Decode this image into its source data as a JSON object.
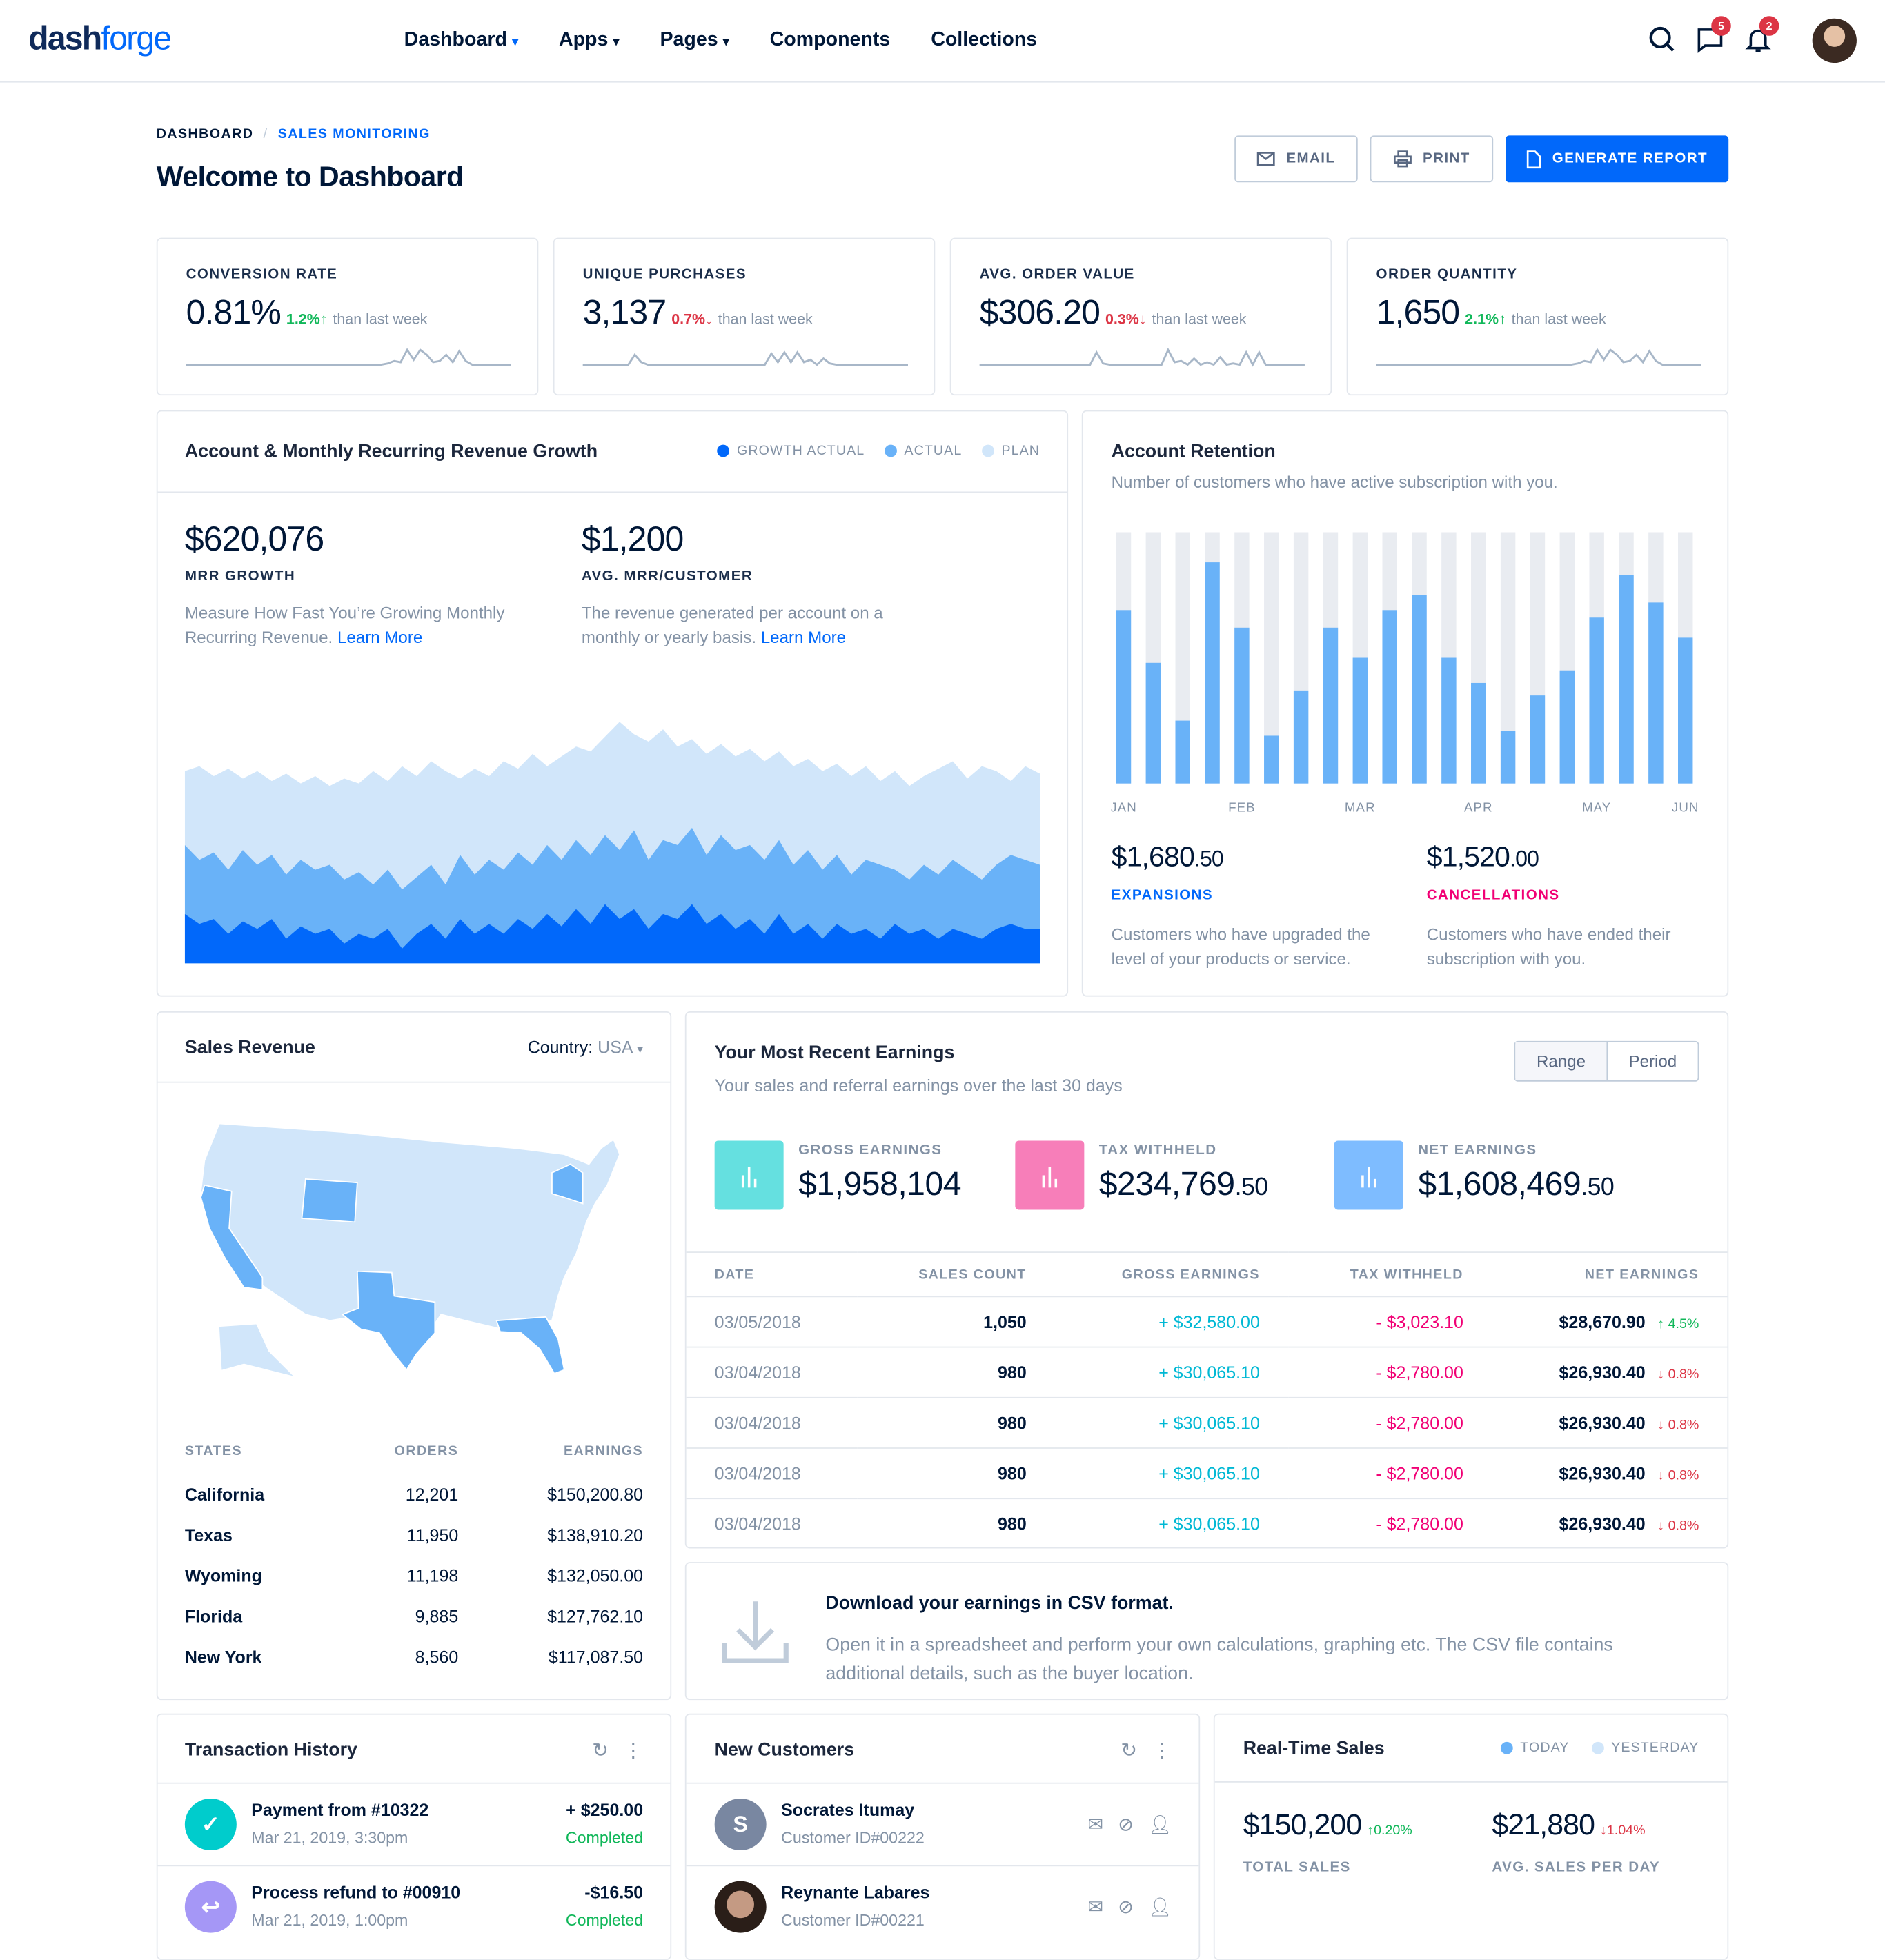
{
  "header": {
    "logo_a": "dash",
    "logo_b": "forge",
    "nav": [
      {
        "label": "Dashboard",
        "dropdown": true,
        "active": true
      },
      {
        "label": "Apps",
        "dropdown": true
      },
      {
        "label": "Pages",
        "dropdown": true
      },
      {
        "label": "Components"
      },
      {
        "label": "Collections"
      }
    ],
    "messages_badge": "5",
    "notifications_badge": "2",
    "chev": "⌄"
  },
  "breadcrumb": {
    "root": "DASHBOARD",
    "sep": "/",
    "current": "SALES MONITORING"
  },
  "page_title": "Welcome to Dashboard",
  "actions": {
    "email": "EMAIL",
    "print": "PRINT",
    "generate": "GENERATE REPORT"
  },
  "kpis": [
    {
      "label": "Conversion Rate",
      "value": "0.81%",
      "change": "1.2%",
      "dir": "up",
      "arrow": "↑",
      "suffix": "than last week",
      "spark": [
        0,
        0,
        0,
        0,
        0,
        0,
        0,
        0,
        0,
        0,
        0,
        0,
        0,
        0,
        0,
        0,
        0,
        0,
        0,
        0,
        0,
        0,
        0,
        0,
        0,
        0,
        0,
        0,
        0,
        0,
        0,
        1,
        3,
        2,
        12,
        4,
        12,
        8,
        2,
        3,
        8,
        2,
        11,
        3,
        0,
        0,
        0,
        0,
        0,
        0,
        0
      ]
    },
    {
      "label": "Unique Purchases",
      "value": "3,137",
      "change": "0.7%",
      "dir": "down",
      "arrow": "↓",
      "suffix": "than last week",
      "spark": [
        0,
        0,
        0,
        0,
        0,
        0,
        0,
        0,
        8,
        2,
        0,
        0,
        0,
        0,
        0,
        0,
        0,
        0,
        0,
        0,
        0,
        0,
        0,
        0,
        0,
        0,
        0,
        0,
        0,
        9,
        2,
        10,
        2,
        10,
        2,
        4,
        0,
        5,
        1,
        0,
        0,
        0,
        0,
        0,
        0,
        0,
        0,
        0,
        0,
        0,
        0
      ]
    },
    {
      "label": "Avg. Order Value",
      "value": "$306.20",
      "change": "0.3%",
      "dir": "down",
      "arrow": "↓",
      "suffix": "than last week",
      "spark": [
        0,
        0,
        0,
        0,
        0,
        0,
        0,
        0,
        0,
        0,
        0,
        0,
        0,
        0,
        0,
        0,
        0,
        0,
        10,
        1,
        0,
        0,
        0,
        0,
        0,
        0,
        0,
        0,
        0,
        12,
        2,
        3,
        0,
        5,
        0,
        2,
        0,
        6,
        0,
        1,
        0,
        10,
        0,
        10,
        0,
        0,
        0,
        0,
        0,
        0,
        0
      ]
    },
    {
      "label": "Order Quantity",
      "value": "1,650",
      "change": "2.1%",
      "dir": "up",
      "arrow": "↑",
      "suffix": "than last week",
      "spark": [
        0,
        0,
        0,
        0,
        0,
        0,
        0,
        0,
        0,
        0,
        0,
        0,
        0,
        0,
        0,
        0,
        0,
        0,
        0,
        0,
        0,
        0,
        0,
        0,
        0,
        0,
        0,
        0,
        0,
        0,
        0,
        1,
        3,
        2,
        12,
        4,
        12,
        8,
        2,
        3,
        8,
        2,
        11,
        3,
        0,
        0,
        0,
        0,
        0,
        0,
        0
      ]
    }
  ],
  "revenue": {
    "title": "Account & Monthly Recurring Revenue Growth",
    "legend": [
      {
        "label": "GROWTH ACTUAL",
        "color": "#0168fa"
      },
      {
        "label": "ACTUAL",
        "color": "#69b2f8"
      },
      {
        "label": "PLAN",
        "color": "#d1e6fa"
      }
    ],
    "stats": [
      {
        "value": "$620,076",
        "label": "MRR GROWTH",
        "desc": "Measure How Fast You’re Growing Monthly Recurring Revenue.",
        "link": "Learn More"
      },
      {
        "value": "$1,200",
        "label": "AVG. MRR/CUSTOMER",
        "desc": "The revenue generated per account on a monthly or yearly basis.",
        "link": "Learn More"
      }
    ]
  },
  "retention": {
    "title": "Account Retention",
    "subtitle": "Number of customers who have active subscription with you.",
    "months": [
      "JAN",
      "FEB",
      "MAR",
      "APR",
      "MAY",
      "JUN"
    ],
    "expansions": {
      "whole": "$1,680",
      "cents": ".50",
      "label": "EXPANSIONS",
      "desc": "Customers who have upgraded the level of your products or service."
    },
    "cancellations": {
      "whole": "$1,520",
      "cents": ".00",
      "label": "CANCELLATIONS",
      "desc": "Customers who have ended their subscription with you."
    }
  },
  "sales_revenue": {
    "title": "Sales Revenue",
    "country_label": "Country:",
    "country": "USA",
    "headers": [
      "STATES",
      "ORDERS",
      "EARNINGS"
    ],
    "rows": [
      [
        "California",
        "12,201",
        "$150,200.80"
      ],
      [
        "Texas",
        "11,950",
        "$138,910.20"
      ],
      [
        "Wyoming",
        "11,198",
        "$132,050.00"
      ],
      [
        "Florida",
        "9,885",
        "$127,762.10"
      ],
      [
        "New York",
        "8,560",
        "$117,087.50"
      ]
    ]
  },
  "earnings": {
    "title": "Your Most Recent Earnings",
    "subtitle": "Your sales and referral earnings over the last 30 days",
    "range": "Range",
    "period": "Period",
    "summary": [
      {
        "label": "GROSS EARNINGS",
        "whole": "$1,958,104",
        "cents": "",
        "color": "#65e0e0"
      },
      {
        "label": "TAX WITHHELD",
        "whole": "$234,769",
        "cents": ".50",
        "color": "#f77eb9"
      },
      {
        "label": "NET EARNINGS",
        "whole": "$1,608,469",
        "cents": ".50",
        "color": "#7ebcff"
      }
    ],
    "headers": [
      "DATE",
      "SALES COUNT",
      "GROSS EARNINGS",
      "TAX WITHHELD",
      "NET EARNINGS"
    ],
    "rows": [
      [
        "03/05/2018",
        "1,050",
        "+ $32,580.00",
        "- $3,023.10",
        "$28,670.90",
        "↑ 4.5%",
        "up"
      ],
      [
        "03/04/2018",
        "980",
        "+ $30,065.10",
        "- $2,780.00",
        "$26,930.40",
        "↓ 0.8%",
        "down"
      ],
      [
        "03/04/2018",
        "980",
        "+ $30,065.10",
        "- $2,780.00",
        "$26,930.40",
        "↓ 0.8%",
        "down"
      ],
      [
        "03/04/2018",
        "980",
        "+ $30,065.10",
        "- $2,780.00",
        "$26,930.40",
        "↓ 0.8%",
        "down"
      ],
      [
        "03/04/2018",
        "980",
        "+ $30,065.10",
        "- $2,780.00",
        "$26,930.40",
        "↓ 0.8%",
        "down"
      ]
    ]
  },
  "csv": {
    "title": "Download your earnings in CSV format.",
    "desc": "Open it in a spreadsheet and perform your own calculations, graphing etc. The CSV file contains additional details, such as the buyer location."
  },
  "transactions": {
    "title": "Transaction History",
    "items": [
      {
        "title": "Payment from #10322",
        "date": "Mar 21, 2019, 3:30pm",
        "amount": "+ $250.00",
        "status": "Completed",
        "icon": "✓",
        "color": "#00cccc"
      },
      {
        "title": "Process refund to #00910",
        "date": "Mar 21, 2019, 1:00pm",
        "amount": "-$16.50",
        "status": "Completed",
        "icon": "↩",
        "color": "#a597f6"
      }
    ]
  },
  "customers": {
    "title": "New Customers",
    "items": [
      {
        "name": "Socrates Itumay",
        "id": "Customer ID#00222",
        "initial": "S"
      },
      {
        "name": "Reynante Labares",
        "id": "Customer ID#00221",
        "initial": ""
      }
    ]
  },
  "realtime": {
    "title": "Real-Time Sales",
    "legend": [
      {
        "label": "TODAY",
        "color": "#69b2f8"
      },
      {
        "label": "YESTERDAY",
        "color": "#d1e6fa"
      }
    ],
    "stats": [
      {
        "value": "$150,200",
        "change": "↑0.20%",
        "dir": "up",
        "label": "TOTAL SALES"
      },
      {
        "value": "$21,880",
        "change": "↓1.04%",
        "dir": "down",
        "label": "AVG. SALES PER DAY"
      }
    ]
  },
  "chart_data": [
    {
      "type": "area",
      "title": "Account & Monthly Recurring Revenue Growth",
      "ylim": [
        0,
        100
      ],
      "series": [
        {
          "name": "PLAN",
          "color": "#d1e6fa",
          "values": [
            78,
            80,
            76,
            79,
            75,
            78,
            74,
            77,
            73,
            76,
            72,
            75,
            73,
            78,
            74,
            80,
            76,
            82,
            78,
            75,
            79,
            76,
            82,
            79,
            85,
            80,
            84,
            88,
            86,
            92,
            98,
            93,
            90,
            95,
            88,
            91,
            85,
            89,
            84,
            87,
            82,
            86,
            80,
            83,
            78,
            81,
            76,
            80,
            74,
            78,
            72,
            76,
            79,
            82,
            75,
            80,
            78,
            74,
            80,
            77
          ]
        },
        {
          "name": "ACTUAL",
          "color": "#69b2f8",
          "values": [
            48,
            42,
            45,
            38,
            46,
            40,
            44,
            36,
            42,
            38,
            40,
            34,
            37,
            32,
            38,
            30,
            35,
            40,
            32,
            44,
            36,
            42,
            38,
            45,
            40,
            48,
            42,
            50,
            44,
            52,
            46,
            54,
            42,
            50,
            48,
            55,
            44,
            52,
            46,
            48,
            42,
            50,
            40,
            46,
            38,
            44,
            36,
            42,
            40,
            38,
            34,
            40,
            36,
            42,
            38,
            34,
            40,
            44,
            42,
            40
          ]
        },
        {
          "name": "GROWTH ACTUAL",
          "color": "#0168fa",
          "values": [
            20,
            16,
            18,
            12,
            17,
            14,
            18,
            10,
            15,
            12,
            14,
            8,
            12,
            10,
            14,
            6,
            12,
            16,
            10,
            18,
            12,
            16,
            12,
            18,
            14,
            20,
            15,
            22,
            16,
            24,
            18,
            22,
            14,
            20,
            18,
            24,
            16,
            20,
            14,
            18,
            12,
            20,
            12,
            16,
            10,
            16,
            12,
            14,
            10,
            16,
            12,
            14,
            10,
            14,
            12,
            10,
            14,
            16,
            14,
            14
          ]
        }
      ]
    },
    {
      "type": "bar",
      "title": "Account Retention",
      "ylim": [
        0,
        100
      ],
      "x": [
        "JAN",
        "",
        "",
        "",
        "FEB",
        "",
        "",
        "",
        "MAR",
        "",
        "",
        "",
        "APR",
        "",
        "",
        "",
        "MAY",
        "",
        "",
        "JUN"
      ],
      "values": [
        69,
        48,
        25,
        88,
        62,
        19,
        37,
        62,
        50,
        69,
        75,
        50,
        40,
        21,
        35,
        45,
        66,
        83,
        72,
        58
      ]
    }
  ]
}
